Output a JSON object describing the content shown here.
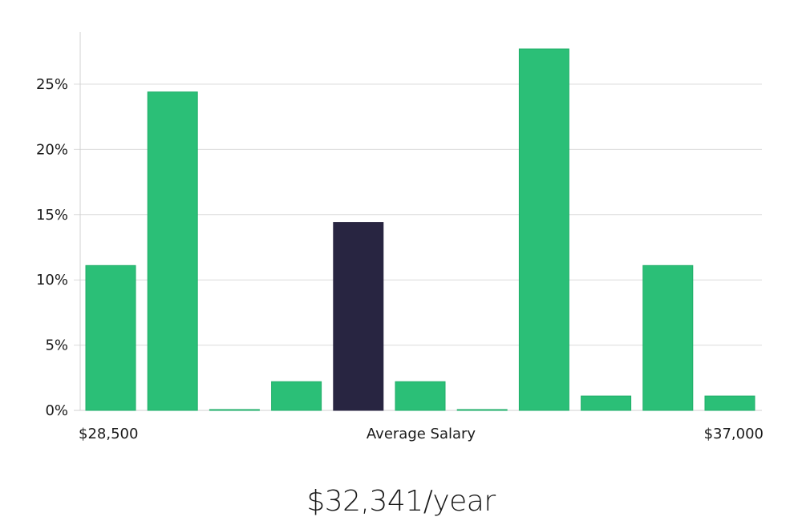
{
  "chart_data": {
    "type": "bar",
    "values": [
      11.1,
      24.4,
      0,
      2.2,
      14.4,
      2.2,
      0,
      27.7,
      1.1,
      11.1,
      1.1
    ],
    "highlight_index": 4,
    "x_labels": {
      "left": "$28,500",
      "center": "Average Salary",
      "right": "$37,000"
    },
    "y_ticks": [
      "0%",
      "5%",
      "10%",
      "15%",
      "20%",
      "25%"
    ],
    "y_tick_values": [
      0,
      5,
      10,
      15,
      20,
      25
    ],
    "ylim": [
      0,
      29
    ],
    "grid": true
  },
  "colors": {
    "bar": "#2bbf77",
    "bar_stroke": "#1fae68",
    "highlight": "#282541",
    "grid": "#dcdcdc",
    "axis": "#d0d0d0"
  },
  "salary_text": "$32,341/year"
}
